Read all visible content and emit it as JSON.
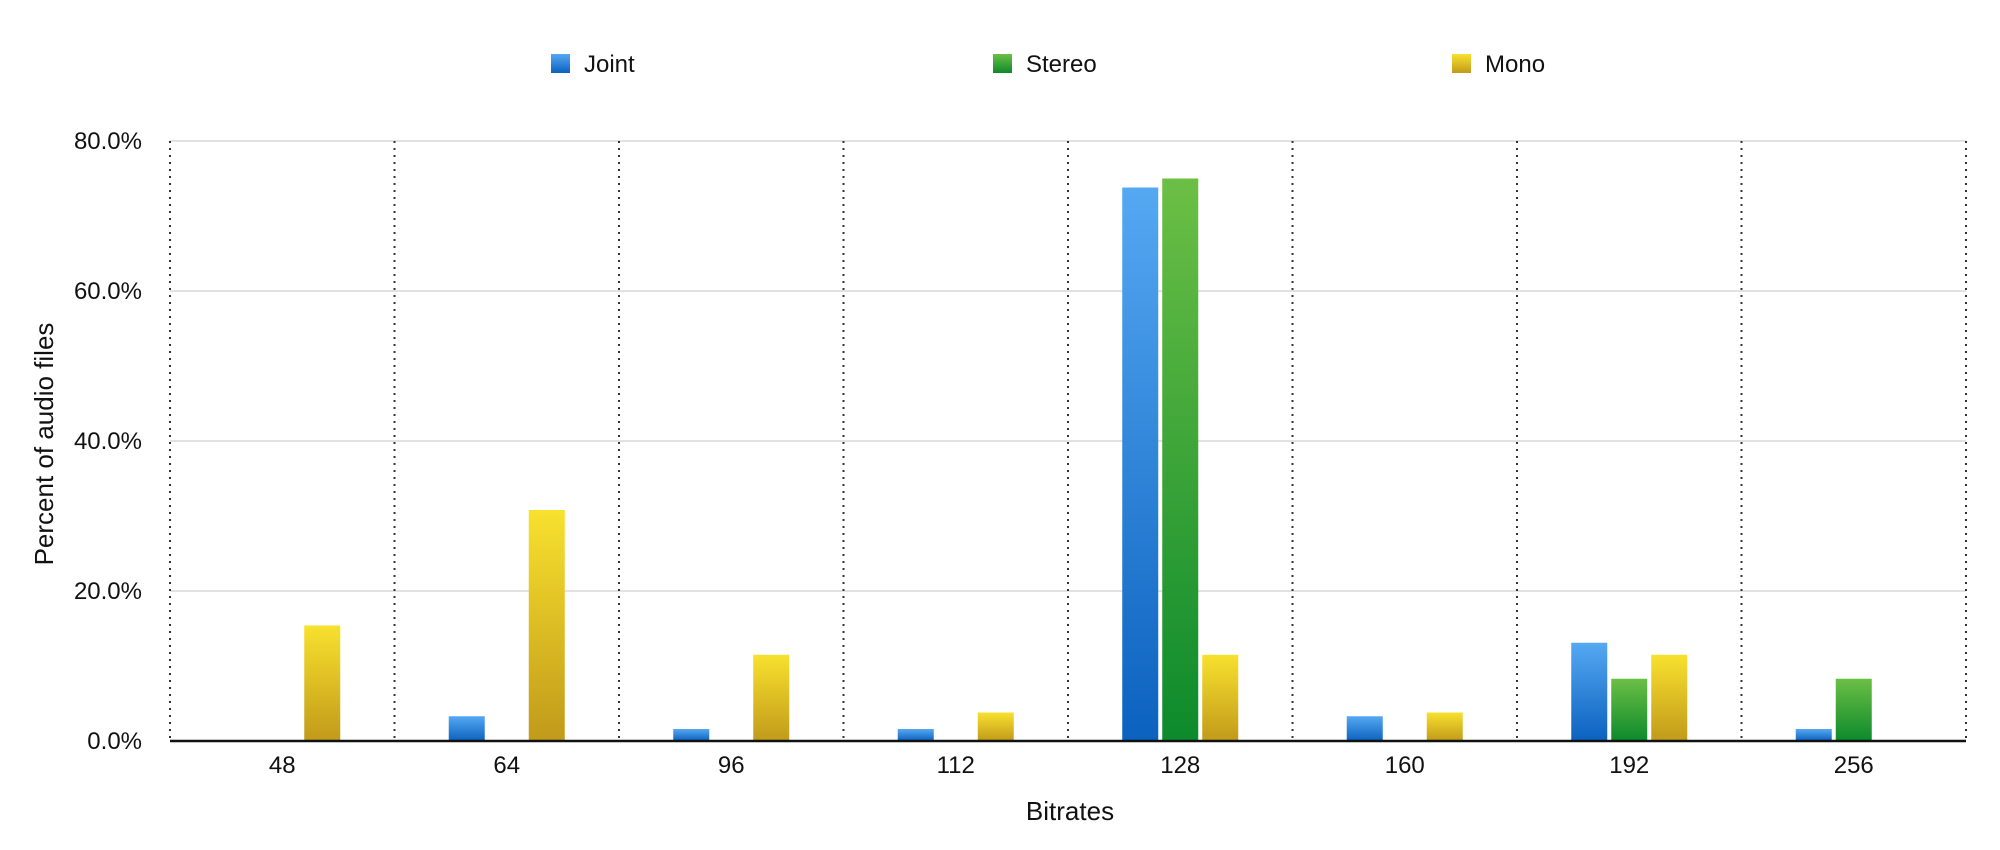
{
  "chart_data": {
    "type": "bar",
    "title": "",
    "xlabel": "Bitrates",
    "ylabel": "Percent of audio files",
    "categories": [
      "48",
      "64",
      "96",
      "112",
      "128",
      "160",
      "192",
      "256"
    ],
    "series": [
      {
        "name": "Joint",
        "color": "#2b86df",
        "values": [
          0.0,
          3.3,
          1.6,
          1.6,
          73.8,
          3.3,
          13.1,
          1.6
        ]
      },
      {
        "name": "Stereo",
        "color": "#2ea33a",
        "values": [
          0.0,
          0.0,
          0.0,
          0.0,
          75.0,
          0.0,
          8.3,
          8.3
        ]
      },
      {
        "name": "Mono",
        "color": "#e3c21e",
        "values": [
          15.4,
          30.8,
          11.5,
          3.8,
          11.5,
          3.8,
          11.5,
          0.0
        ]
      }
    ],
    "ylim": [
      0,
      80
    ],
    "yticks": [
      "0.0%",
      "20.0%",
      "40.0%",
      "60.0%",
      "80.0%"
    ],
    "grid": true,
    "legend_position": "top"
  }
}
